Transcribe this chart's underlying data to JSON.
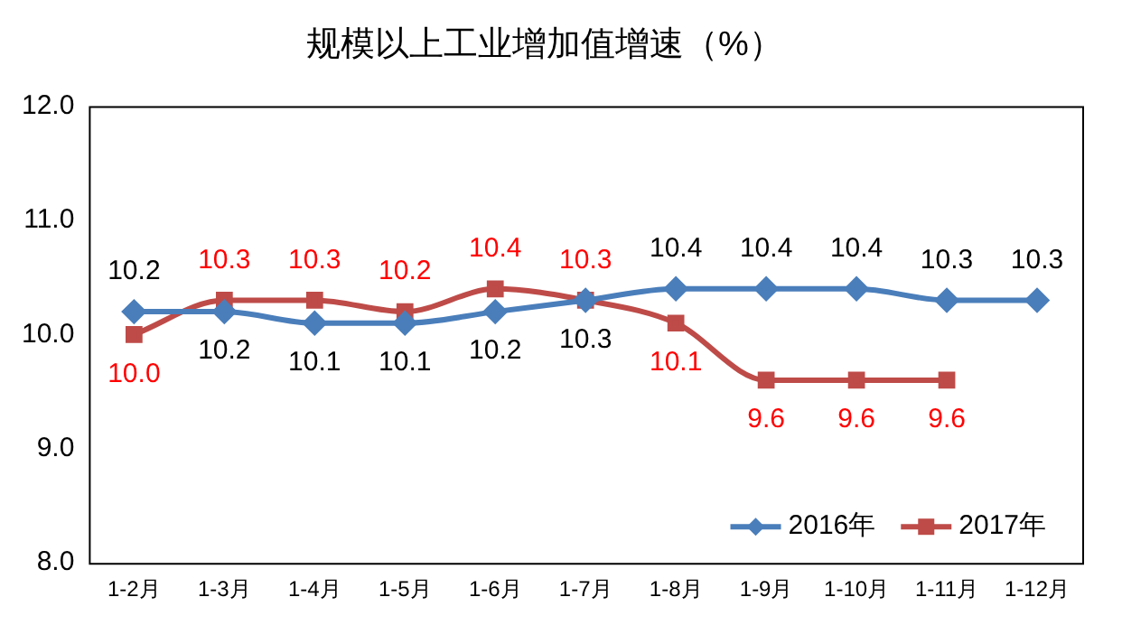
{
  "chart_data": {
    "type": "line",
    "title": "规模以上工业增加值增速（%）",
    "categories": [
      "1-2月",
      "1-3月",
      "1-4月",
      "1-5月",
      "1-6月",
      "1-7月",
      "1-8月",
      "1-9月",
      "1-10月",
      "1-11月",
      "1-12月"
    ],
    "series": [
      {
        "name": "2016年",
        "color": "#4a7ebb",
        "marker": "diamond",
        "values": [
          10.2,
          10.2,
          10.1,
          10.1,
          10.2,
          10.3,
          10.4,
          10.4,
          10.4,
          10.3,
          10.3
        ],
        "value_labels": [
          "10.2",
          "10.2",
          "10.1",
          "10.1",
          "10.2",
          "10.3",
          "10.4",
          "10.4",
          "10.4",
          "10.3",
          "10.3"
        ]
      },
      {
        "name": "2017年",
        "color": "#be4b48",
        "marker": "square",
        "values": [
          10.0,
          10.3,
          10.3,
          10.2,
          10.4,
          10.3,
          10.1,
          9.6,
          9.6,
          9.6,
          null
        ],
        "value_labels": [
          "10.0",
          "10.3",
          "10.3",
          "10.2",
          "10.4",
          "10.3",
          "10.1",
          "9.6",
          "9.6",
          "9.6",
          null
        ]
      }
    ],
    "ylim": [
      8,
      12
    ],
    "yticks": [
      {
        "value": 8,
        "label": "8.0"
      },
      {
        "value": 9,
        "label": "9.0"
      },
      {
        "value": 10,
        "label": "10.0"
      },
      {
        "value": 11,
        "label": "11.0"
      },
      {
        "value": 12,
        "label": "12.0"
      }
    ],
    "grid": false,
    "legend": "bottom right"
  }
}
